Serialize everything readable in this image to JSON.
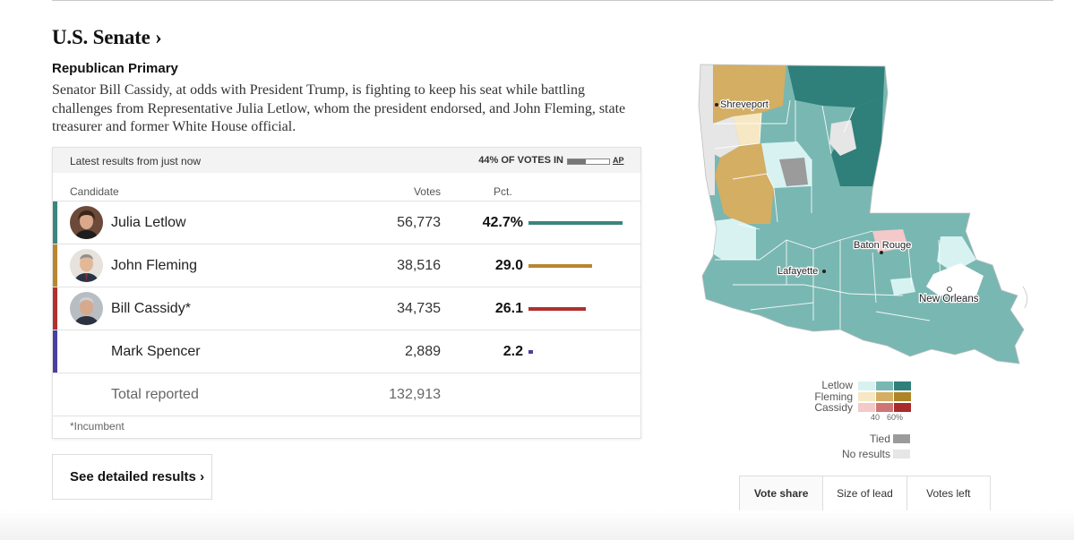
{
  "section": {
    "title": "U.S. Senate ›"
  },
  "race": {
    "subtitle": "Republican Primary",
    "description": "Senator Bill Cassidy, at odds with President Trump, is fighting to keep his seat while battling challenges from Representative Julia Letlow, whom the president endorsed, and John Fleming, state treasurer and former White House official."
  },
  "results": {
    "latest": "Latest results from just now",
    "votes_in": "44% OF VOTES IN",
    "votes_in_fraction": 0.44,
    "source": "AP",
    "headers": {
      "candidate": "Candidate",
      "votes": "Votes",
      "pct": "Pct."
    },
    "candidates": [
      {
        "name": "Julia Letlow",
        "votes": "56,773",
        "pct": "42.7%",
        "pct_value": 42.7,
        "color": "#3b857e"
      },
      {
        "name": "John Fleming",
        "votes": "38,516",
        "pct": "29.0",
        "pct_value": 29.0,
        "color": "#b8862f"
      },
      {
        "name": "Bill Cassidy*",
        "votes": "34,735",
        "pct": "26.1",
        "pct_value": 26.1,
        "color": "#b02f2f"
      },
      {
        "name": "Mark Spencer",
        "votes": "2,889",
        "pct": "2.2",
        "pct_value": 2.2,
        "color": "#4a3f9e"
      }
    ],
    "total_label": "Total reported",
    "total_votes": "132,913",
    "footnote": "*Incumbent"
  },
  "detail_button": "See detailed results ›",
  "map": {
    "cities": [
      "Shreveport",
      "Baton Rouge",
      "Lafayette",
      "New Orleans"
    ],
    "colors": {
      "letlow": [
        "#d8f2f2",
        "#79b7b2",
        "#2f7f7a"
      ],
      "fleming": [
        "#f6e8c4",
        "#d4ae62",
        "#ad8527"
      ],
      "cassidy": [
        "#f3c9c9",
        "#cf7575",
        "#a82a2a"
      ],
      "tied": "#9b9b9b",
      "no_results": "#e6e6e6"
    }
  },
  "legend": {
    "letlow": "Letlow",
    "fleming": "Fleming",
    "cassidy": "Cassidy",
    "tick_low": "40",
    "tick_high": "60%",
    "tied": "Tied",
    "no_results": "No results"
  },
  "toggle": [
    "Vote share",
    "Size of lead",
    "Votes left"
  ]
}
